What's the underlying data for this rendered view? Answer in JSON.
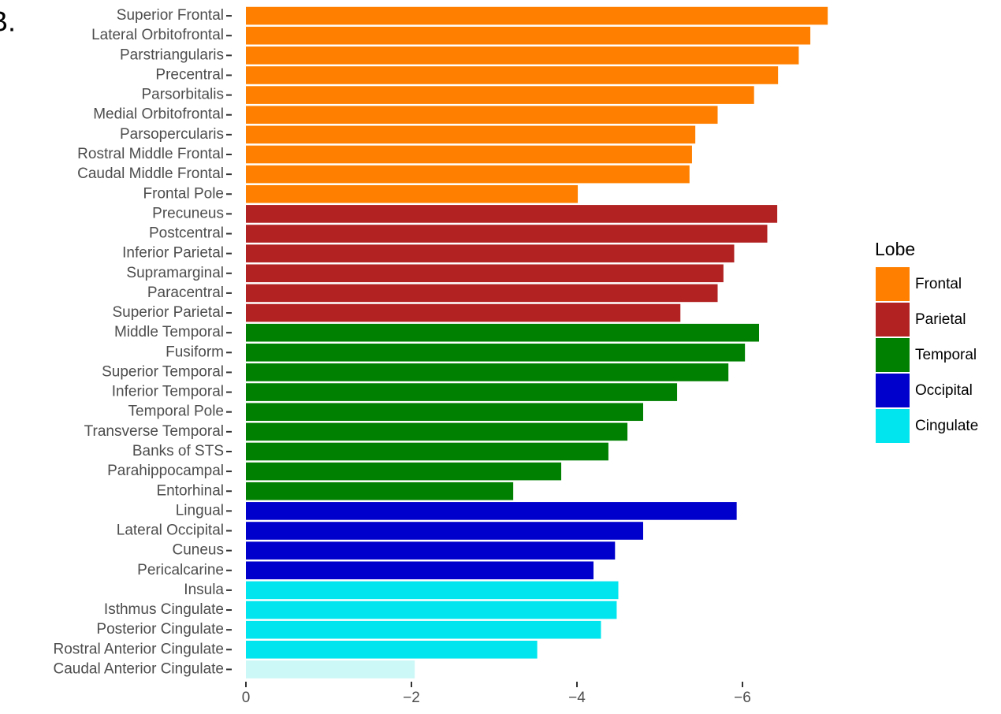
{
  "chart_data": {
    "type": "barh",
    "panel_label": "B.",
    "categories": [
      "Superior Frontal",
      "Lateral Orbitofrontal",
      "Parstriangularis",
      "Precentral",
      "Parsorbitalis",
      "Medial Orbitofrontal",
      "Parsopercularis",
      "Rostral Middle Frontal",
      "Caudal Middle Frontal",
      "Frontal Pole",
      "Precuneus",
      "Postcentral",
      "Inferior Parietal",
      "Supramarginal",
      "Paracentral",
      "Superior Parietal",
      "Middle Temporal",
      "Fusiform",
      "Superior Temporal",
      "Inferior Temporal",
      "Temporal Pole",
      "Transverse Temporal",
      "Banks of STS",
      "Parahippocampal",
      "Entorhinal",
      "Lingual",
      "Lateral Occipital",
      "Cuneus",
      "Pericalcarine",
      "Insula",
      "Isthmus Cingulate",
      "Posterior Cingulate",
      "Rostral Anterior Cingulate",
      "Caudal Anterior Cingulate"
    ],
    "values": [
      -7.03,
      -6.82,
      -6.68,
      -6.43,
      -6.14,
      -5.7,
      -5.43,
      -5.39,
      -5.36,
      -4.01,
      -6.42,
      -6.3,
      -5.9,
      -5.77,
      -5.7,
      -5.25,
      -6.2,
      -6.03,
      -5.83,
      -5.21,
      -4.8,
      -4.61,
      -4.38,
      -3.81,
      -3.23,
      -5.93,
      -4.8,
      -4.46,
      -4.2,
      -4.5,
      -4.48,
      -4.29,
      -3.52,
      -2.04
    ],
    "colors": [
      "#ff8000",
      "#ff8000",
      "#ff8000",
      "#ff8000",
      "#ff8000",
      "#ff8000",
      "#ff8000",
      "#ff8000",
      "#ff8000",
      "#ff8000",
      "#b22222",
      "#b22222",
      "#b22222",
      "#b22222",
      "#b22222",
      "#b22222",
      "#008000",
      "#008000",
      "#008000",
      "#008000",
      "#008000",
      "#008000",
      "#008000",
      "#008000",
      "#008000",
      "#0000cd",
      "#0000cd",
      "#0000cd",
      "#0000cd",
      "#00e5ee",
      "#00e5ee",
      "#00e5ee",
      "#00e5ee",
      "#ccf8f8"
    ],
    "xlim": [
      0,
      -7.1
    ],
    "xticks": [
      0,
      {
        "value": -2,
        "label": "−2"
      },
      {
        "value": -4,
        "label": "−4"
      },
      {
        "value": -6,
        "label": "−6"
      }
    ],
    "legend": {
      "title": "Lobe",
      "items": [
        {
          "name": "Frontal",
          "color": "#ff8000"
        },
        {
          "name": "Parietal",
          "color": "#b22222"
        },
        {
          "name": "Temporal",
          "color": "#008000"
        },
        {
          "name": "Occipital",
          "color": "#0000cd"
        },
        {
          "name": "Cingulate",
          "color": "#00e5ee"
        }
      ]
    }
  }
}
